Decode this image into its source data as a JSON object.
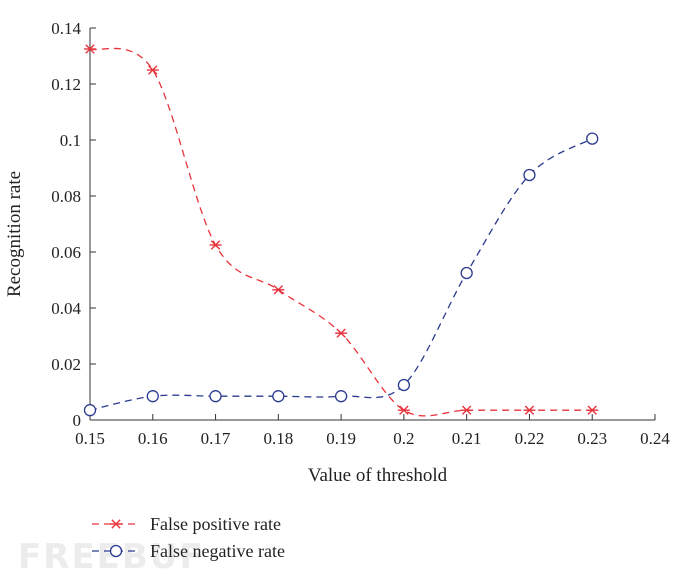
{
  "chart_data": {
    "type": "line",
    "title": "",
    "xlabel": "Value of threshold",
    "ylabel": "Recognition rate",
    "xlim": [
      0.15,
      0.24
    ],
    "ylim": [
      0,
      0.14
    ],
    "x_ticks": [
      "0.15",
      "0.16",
      "0.17",
      "0.18",
      "0.19",
      "0.2",
      "0.21",
      "0.22",
      "0.23",
      "0.24"
    ],
    "y_ticks": [
      "0",
      "0.02",
      "0.04",
      "0.06",
      "0.08",
      "0.1",
      "0.12",
      "0.14"
    ],
    "x": [
      0.15,
      0.16,
      0.17,
      0.18,
      0.19,
      0.2,
      0.21,
      0.22,
      0.23
    ],
    "series": [
      {
        "name": "False positive rate",
        "values": [
          0.1325,
          0.125,
          0.0625,
          0.0465,
          0.031,
          0.0035,
          0.0035,
          0.0035,
          0.0035
        ],
        "color": "#e8343c",
        "marker": "asterisk"
      },
      {
        "name": "False negative rate",
        "values": [
          0.0035,
          0.0085,
          0.0085,
          0.0085,
          0.0085,
          0.0125,
          0.0525,
          0.0875,
          0.1005
        ],
        "color": "#2b3a8f",
        "marker": "circle"
      }
    ],
    "legend_position": "bottom-left",
    "grid": false
  },
  "watermark": "FREEBUF"
}
